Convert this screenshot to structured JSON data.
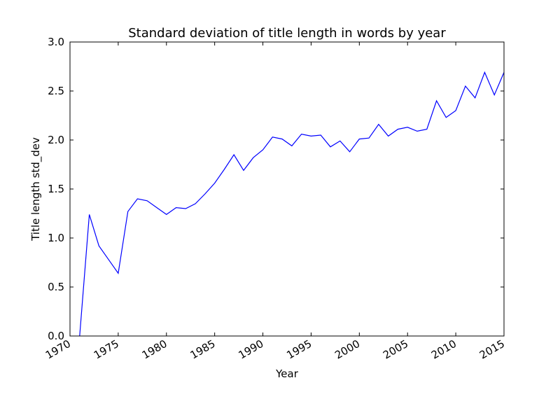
{
  "chart_data": {
    "type": "line",
    "title": "Standard deviation of title length in words by year",
    "xlabel": "Year",
    "ylabel": "Title length std_dev",
    "xlim": [
      1970,
      2015
    ],
    "ylim": [
      0.0,
      3.0
    ],
    "x_ticks": [
      1970,
      1975,
      1980,
      1985,
      1990,
      1995,
      2000,
      2005,
      2010,
      2015
    ],
    "y_ticks": [
      0.0,
      0.5,
      1.0,
      1.5,
      2.0,
      2.5,
      3.0
    ],
    "y_tick_labels": [
      "0.0",
      "0.5",
      "1.0",
      "1.5",
      "2.0",
      "2.5",
      "3.0"
    ],
    "grid": false,
    "line_color": "#0000ff",
    "series": [
      {
        "x": [
          1971,
          1972,
          1973,
          1974,
          1975,
          1976,
          1977,
          1978,
          1979,
          1980,
          1981,
          1982,
          1983,
          1984,
          1985,
          1986,
          1987,
          1988,
          1989,
          1990,
          1991,
          1992,
          1993,
          1994,
          1995,
          1996,
          1997,
          1998,
          1999,
          2000,
          2001,
          2002,
          2003,
          2004,
          2005,
          2006,
          2007,
          2008,
          2009,
          2010,
          2011,
          2012,
          2013,
          2014,
          2015
        ],
        "values": [
          0.0,
          1.24,
          0.92,
          0.78,
          0.64,
          1.27,
          1.4,
          1.38,
          1.31,
          1.24,
          1.31,
          1.3,
          1.35,
          1.45,
          1.56,
          1.7,
          1.85,
          1.69,
          1.82,
          1.9,
          2.03,
          2.01,
          1.94,
          2.06,
          2.04,
          2.05,
          1.93,
          1.99,
          1.88,
          2.01,
          2.02,
          2.16,
          2.04,
          2.11,
          2.13,
          2.09,
          2.11,
          2.4,
          2.23,
          2.3,
          2.55,
          2.43,
          2.69,
          2.46,
          2.69
        ]
      }
    ]
  }
}
